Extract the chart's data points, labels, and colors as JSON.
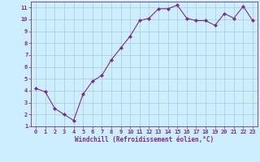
{
  "x": [
    0,
    1,
    2,
    3,
    4,
    5,
    6,
    7,
    8,
    9,
    10,
    11,
    12,
    13,
    14,
    15,
    16,
    17,
    18,
    19,
    20,
    21,
    22,
    23
  ],
  "y": [
    4.2,
    3.9,
    2.5,
    2.0,
    1.5,
    3.7,
    4.8,
    5.3,
    6.6,
    7.6,
    8.6,
    9.9,
    10.1,
    10.9,
    10.9,
    11.2,
    10.1,
    9.9,
    9.9,
    9.5,
    10.5,
    10.1,
    11.1,
    9.9
  ],
  "line_color": "#7b2d8b",
  "marker": "D",
  "marker_size": 2,
  "bg_color": "#cceeff",
  "grid_color": "#aacccc",
  "xlabel": "Windchill (Refroidissement éolien,°C)",
  "xlabel_color": "#7b2d8b",
  "tick_color": "#7b2d8b",
  "xlim": [
    -0.5,
    23.5
  ],
  "ylim": [
    1,
    11.5
  ],
  "yticks": [
    1,
    2,
    3,
    4,
    5,
    6,
    7,
    8,
    9,
    10,
    11
  ],
  "xticks": [
    0,
    1,
    2,
    3,
    4,
    5,
    6,
    7,
    8,
    9,
    10,
    11,
    12,
    13,
    14,
    15,
    16,
    17,
    18,
    19,
    20,
    21,
    22,
    23
  ]
}
